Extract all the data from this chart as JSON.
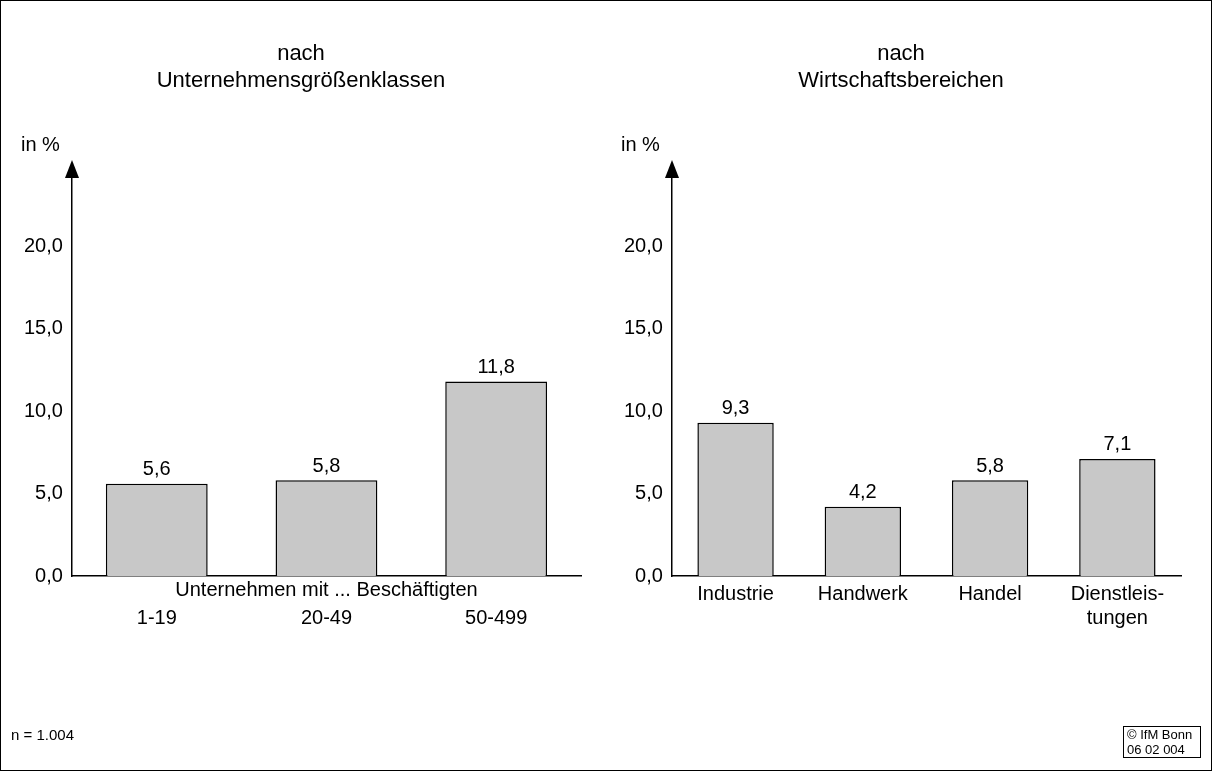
{
  "chart_data": [
    {
      "type": "bar",
      "title": "nach\nUnternehmensgrößenklassen",
      "ylabel": "in %",
      "xlabel": "Unternehmen mit ... Beschäftigten",
      "categories": [
        "1-19",
        "20-49",
        "50-499"
      ],
      "values": [
        5.6,
        5.8,
        11.8
      ],
      "value_labels": [
        "5,6",
        "5,8",
        "11,8"
      ],
      "color": "#c8c8c8",
      "ylim": [
        0,
        25
      ],
      "yticks": [
        {
          "value": 0,
          "label": "0,0"
        },
        {
          "value": 5,
          "label": "5,0"
        },
        {
          "value": 10,
          "label": "10,0"
        },
        {
          "value": 15,
          "label": "15,0"
        },
        {
          "value": 20,
          "label": "20,0"
        }
      ],
      "grid": false,
      "legend": false,
      "annotations": [
        "n = 1.004"
      ]
    },
    {
      "type": "bar",
      "title": "nach\nWirtschaftsbereichen",
      "ylabel": "in %",
      "categories": [
        "Industrie",
        "Handwerk",
        "Handel",
        "Dienstleis-\ntungen"
      ],
      "values": [
        9.3,
        4.2,
        5.8,
        7.1
      ],
      "value_labels": [
        "9,3",
        "4,2",
        "5,8",
        "7,1"
      ],
      "color": "#c8c8c8",
      "ylim": [
        0,
        25
      ],
      "yticks": [
        {
          "value": 0,
          "label": "0,0"
        },
        {
          "value": 5,
          "label": "5,0"
        },
        {
          "value": 10,
          "label": "10,0"
        },
        {
          "value": 15,
          "label": "15,0"
        },
        {
          "value": 20,
          "label": "20,0"
        }
      ],
      "grid": false,
      "legend": false,
      "annotations": [
        "© IfM Bonn 06 02 004"
      ]
    }
  ]
}
